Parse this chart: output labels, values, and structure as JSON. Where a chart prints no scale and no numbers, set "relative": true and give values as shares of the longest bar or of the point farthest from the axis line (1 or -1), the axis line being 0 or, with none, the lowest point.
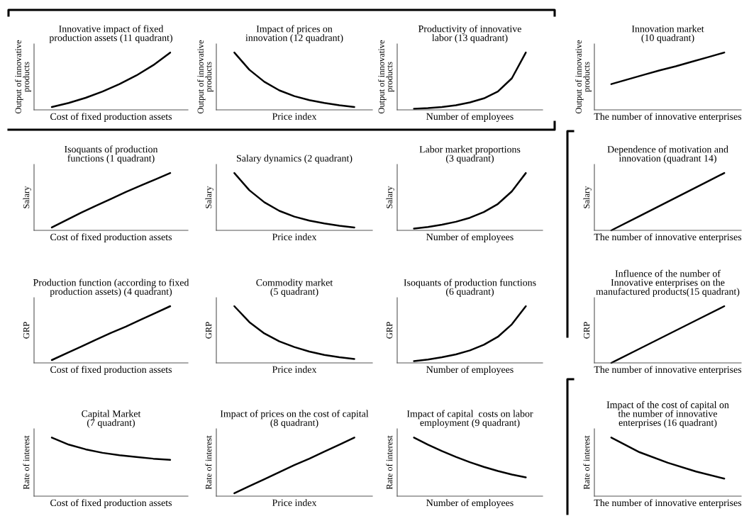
{
  "chart_data": [
    {
      "type": "line",
      "title": "Innovative impact of fixed\nproduction assets (11 quadrant)",
      "xlabel": "Cost of fixed production assets",
      "ylabel": "Output of innovative\nproducts",
      "relative": true,
      "tick_labels": false,
      "categories": [
        null,
        null,
        null,
        null,
        null,
        null,
        null,
        null
      ],
      "series": [
        {
          "color": "#000000",
          "values": [
            0.05,
            0.12,
            0.21,
            0.32,
            0.45,
            0.6,
            0.78,
            1.0
          ]
        }
      ]
    },
    {
      "type": "line",
      "title": "Impact of prices on\ninnovation (12 quadrant)",
      "xlabel": "Price index",
      "ylabel": "Output of innovative\nproducts",
      "relative": true,
      "tick_labels": false,
      "categories": [
        null,
        null,
        null,
        null,
        null,
        null,
        null,
        null,
        null
      ],
      "series": [
        {
          "color": "#000000",
          "values": [
            1.0,
            0.7,
            0.49,
            0.34,
            0.24,
            0.17,
            0.12,
            0.08,
            0.05
          ]
        }
      ]
    },
    {
      "type": "line",
      "title": "Productivity of innovative\nlabor (13 quadrant)",
      "xlabel": "Number of employees",
      "ylabel": "Output of innovative\nproducts",
      "relative": true,
      "tick_labels": false,
      "categories": [
        null,
        null,
        null,
        null,
        null,
        null,
        null,
        null,
        null
      ],
      "series": [
        {
          "color": "#000000",
          "values": [
            0.02,
            0.03,
            0.05,
            0.08,
            0.13,
            0.2,
            0.32,
            0.55,
            1.0
          ]
        }
      ]
    },
    {
      "type": "line",
      "title": "Innovation market\n(10 quadrant)",
      "xlabel": "The number of innovative enterprises",
      "ylabel": "Output of innovative\nproducts",
      "relative": true,
      "tick_labels": false,
      "categories": [
        null,
        null,
        null,
        null,
        null,
        null,
        null,
        null
      ],
      "series": [
        {
          "color": "#000000",
          "values": [
            0.45,
            0.53,
            0.61,
            0.69,
            0.76,
            0.84,
            0.92,
            1.0
          ]
        }
      ]
    },
    {
      "type": "line",
      "title": "Isoquants of production\nfunctions (1 quadrant)",
      "xlabel": "Cost of fixed production assets",
      "ylabel": "Salary",
      "relative": true,
      "tick_labels": false,
      "categories": [
        null,
        null,
        null,
        null,
        null,
        null,
        null,
        null,
        null
      ],
      "series": [
        {
          "color": "#000000",
          "values": [
            0.05,
            0.18,
            0.31,
            0.43,
            0.55,
            0.67,
            0.78,
            0.89,
            1.0
          ]
        }
      ]
    },
    {
      "type": "line",
      "title": "Salary dynamics (2 quadrant)",
      "xlabel": "Price index",
      "ylabel": "Salary",
      "relative": true,
      "tick_labels": false,
      "categories": [
        null,
        null,
        null,
        null,
        null,
        null,
        null,
        null,
        null
      ],
      "series": [
        {
          "color": "#000000",
          "values": [
            1.0,
            0.7,
            0.49,
            0.34,
            0.24,
            0.17,
            0.12,
            0.08,
            0.05
          ]
        }
      ]
    },
    {
      "type": "line",
      "title": "Labor market proportions\n(3 quadrant)",
      "xlabel": "Number of employees",
      "ylabel": "Salary",
      "relative": true,
      "tick_labels": false,
      "categories": [
        null,
        null,
        null,
        null,
        null,
        null,
        null,
        null,
        null
      ],
      "series": [
        {
          "color": "#000000",
          "values": [
            0.03,
            0.06,
            0.1,
            0.15,
            0.22,
            0.32,
            0.46,
            0.68,
            1.0
          ]
        }
      ]
    },
    {
      "type": "line",
      "title": "Dependence of motivation and\ninnovation (quadrant 14)",
      "xlabel": "The number of innovative enterprises",
      "ylabel": "Salary",
      "relative": true,
      "tick_labels": false,
      "categories": [
        null,
        null,
        null,
        null,
        null
      ],
      "series": [
        {
          "color": "#000000",
          "values": [
            0.0,
            0.25,
            0.5,
            0.75,
            1.0
          ]
        }
      ]
    },
    {
      "type": "line",
      "title": "Production function (according to fixed\nproduction assets) (4 quadrant)",
      "xlabel": "Cost of fixed production assets",
      "ylabel": "GRP",
      "relative": true,
      "tick_labels": false,
      "categories": [
        null,
        null,
        null,
        null,
        null,
        null,
        null,
        null,
        null
      ],
      "series": [
        {
          "color": "#000000",
          "values": [
            0.05,
            0.17,
            0.29,
            0.41,
            0.53,
            0.64,
            0.76,
            0.88,
            1.0
          ]
        }
      ]
    },
    {
      "type": "line",
      "title": "Commodity market\n(5 quadrant)",
      "xlabel": "Price index",
      "ylabel": "GRP",
      "relative": true,
      "tick_labels": false,
      "categories": [
        null,
        null,
        null,
        null,
        null,
        null,
        null,
        null,
        null
      ],
      "series": [
        {
          "color": "#000000",
          "values": [
            1.0,
            0.72,
            0.52,
            0.38,
            0.28,
            0.2,
            0.14,
            0.1,
            0.07
          ]
        }
      ]
    },
    {
      "type": "line",
      "title": "Isoquants of production functions\n(6 quadrant)",
      "xlabel": "Number of employees",
      "ylabel": "GRP",
      "relative": true,
      "tick_labels": false,
      "categories": [
        null,
        null,
        null,
        null,
        null,
        null,
        null,
        null,
        null
      ],
      "series": [
        {
          "color": "#000000",
          "values": [
            0.03,
            0.06,
            0.1,
            0.15,
            0.22,
            0.32,
            0.46,
            0.68,
            1.0
          ]
        }
      ]
    },
    {
      "type": "line",
      "title": "Influence of the number of\nInnovative enterprises on the\nmanufactured products(15 quadrant)",
      "xlabel": "The number of innovative enterprises",
      "ylabel": "GRP",
      "relative": true,
      "tick_labels": false,
      "categories": [
        null,
        null,
        null,
        null,
        null
      ],
      "series": [
        {
          "color": "#000000",
          "values": [
            0.0,
            0.25,
            0.5,
            0.75,
            1.0
          ]
        }
      ]
    },
    {
      "type": "line",
      "title": "Capital Market\n(7 quadrant)",
      "xlabel": "Cost of fixed production assets",
      "ylabel": "Rate of interest",
      "relative": true,
      "tick_labels": false,
      "categories": [
        null,
        null,
        null,
        null,
        null,
        null,
        null,
        null
      ],
      "series": [
        {
          "color": "#000000",
          "values": [
            1.0,
            0.88,
            0.8,
            0.74,
            0.7,
            0.67,
            0.64,
            0.62
          ]
        }
      ]
    },
    {
      "type": "line",
      "title": "Impact of prices on the cost of capital\n(8 quadrant)",
      "xlabel": "Price index",
      "ylabel": "Rate of interest",
      "relative": true,
      "tick_labels": false,
      "categories": [
        null,
        null,
        null,
        null,
        null,
        null,
        null,
        null,
        null
      ],
      "series": [
        {
          "color": "#000000",
          "values": [
            0.05,
            0.17,
            0.29,
            0.41,
            0.53,
            0.64,
            0.76,
            0.88,
            1.0
          ]
        }
      ]
    },
    {
      "type": "line",
      "title": "Impact of capital  costs on labor\nemployment (9 quadrant)",
      "xlabel": "Number of employees",
      "ylabel": "Rate of interest",
      "relative": true,
      "tick_labels": false,
      "categories": [
        null,
        null,
        null,
        null,
        null,
        null,
        null,
        null,
        null
      ],
      "series": [
        {
          "color": "#000000",
          "values": [
            1.0,
            0.88,
            0.77,
            0.67,
            0.58,
            0.5,
            0.43,
            0.37,
            0.32
          ]
        }
      ]
    },
    {
      "type": "line",
      "title": "Impact of the cost of capital on\nthe number of innovative\nenterprises (16 quadrant)",
      "xlabel": "The number of innovative enterprises",
      "ylabel": "Rate of interest",
      "relative": true,
      "tick_labels": false,
      "categories": [
        null,
        null,
        null,
        null,
        null
      ],
      "series": [
        {
          "color": "#000000",
          "values": [
            1.0,
            0.75,
            0.57,
            0.42,
            0.3
          ]
        }
      ]
    }
  ]
}
